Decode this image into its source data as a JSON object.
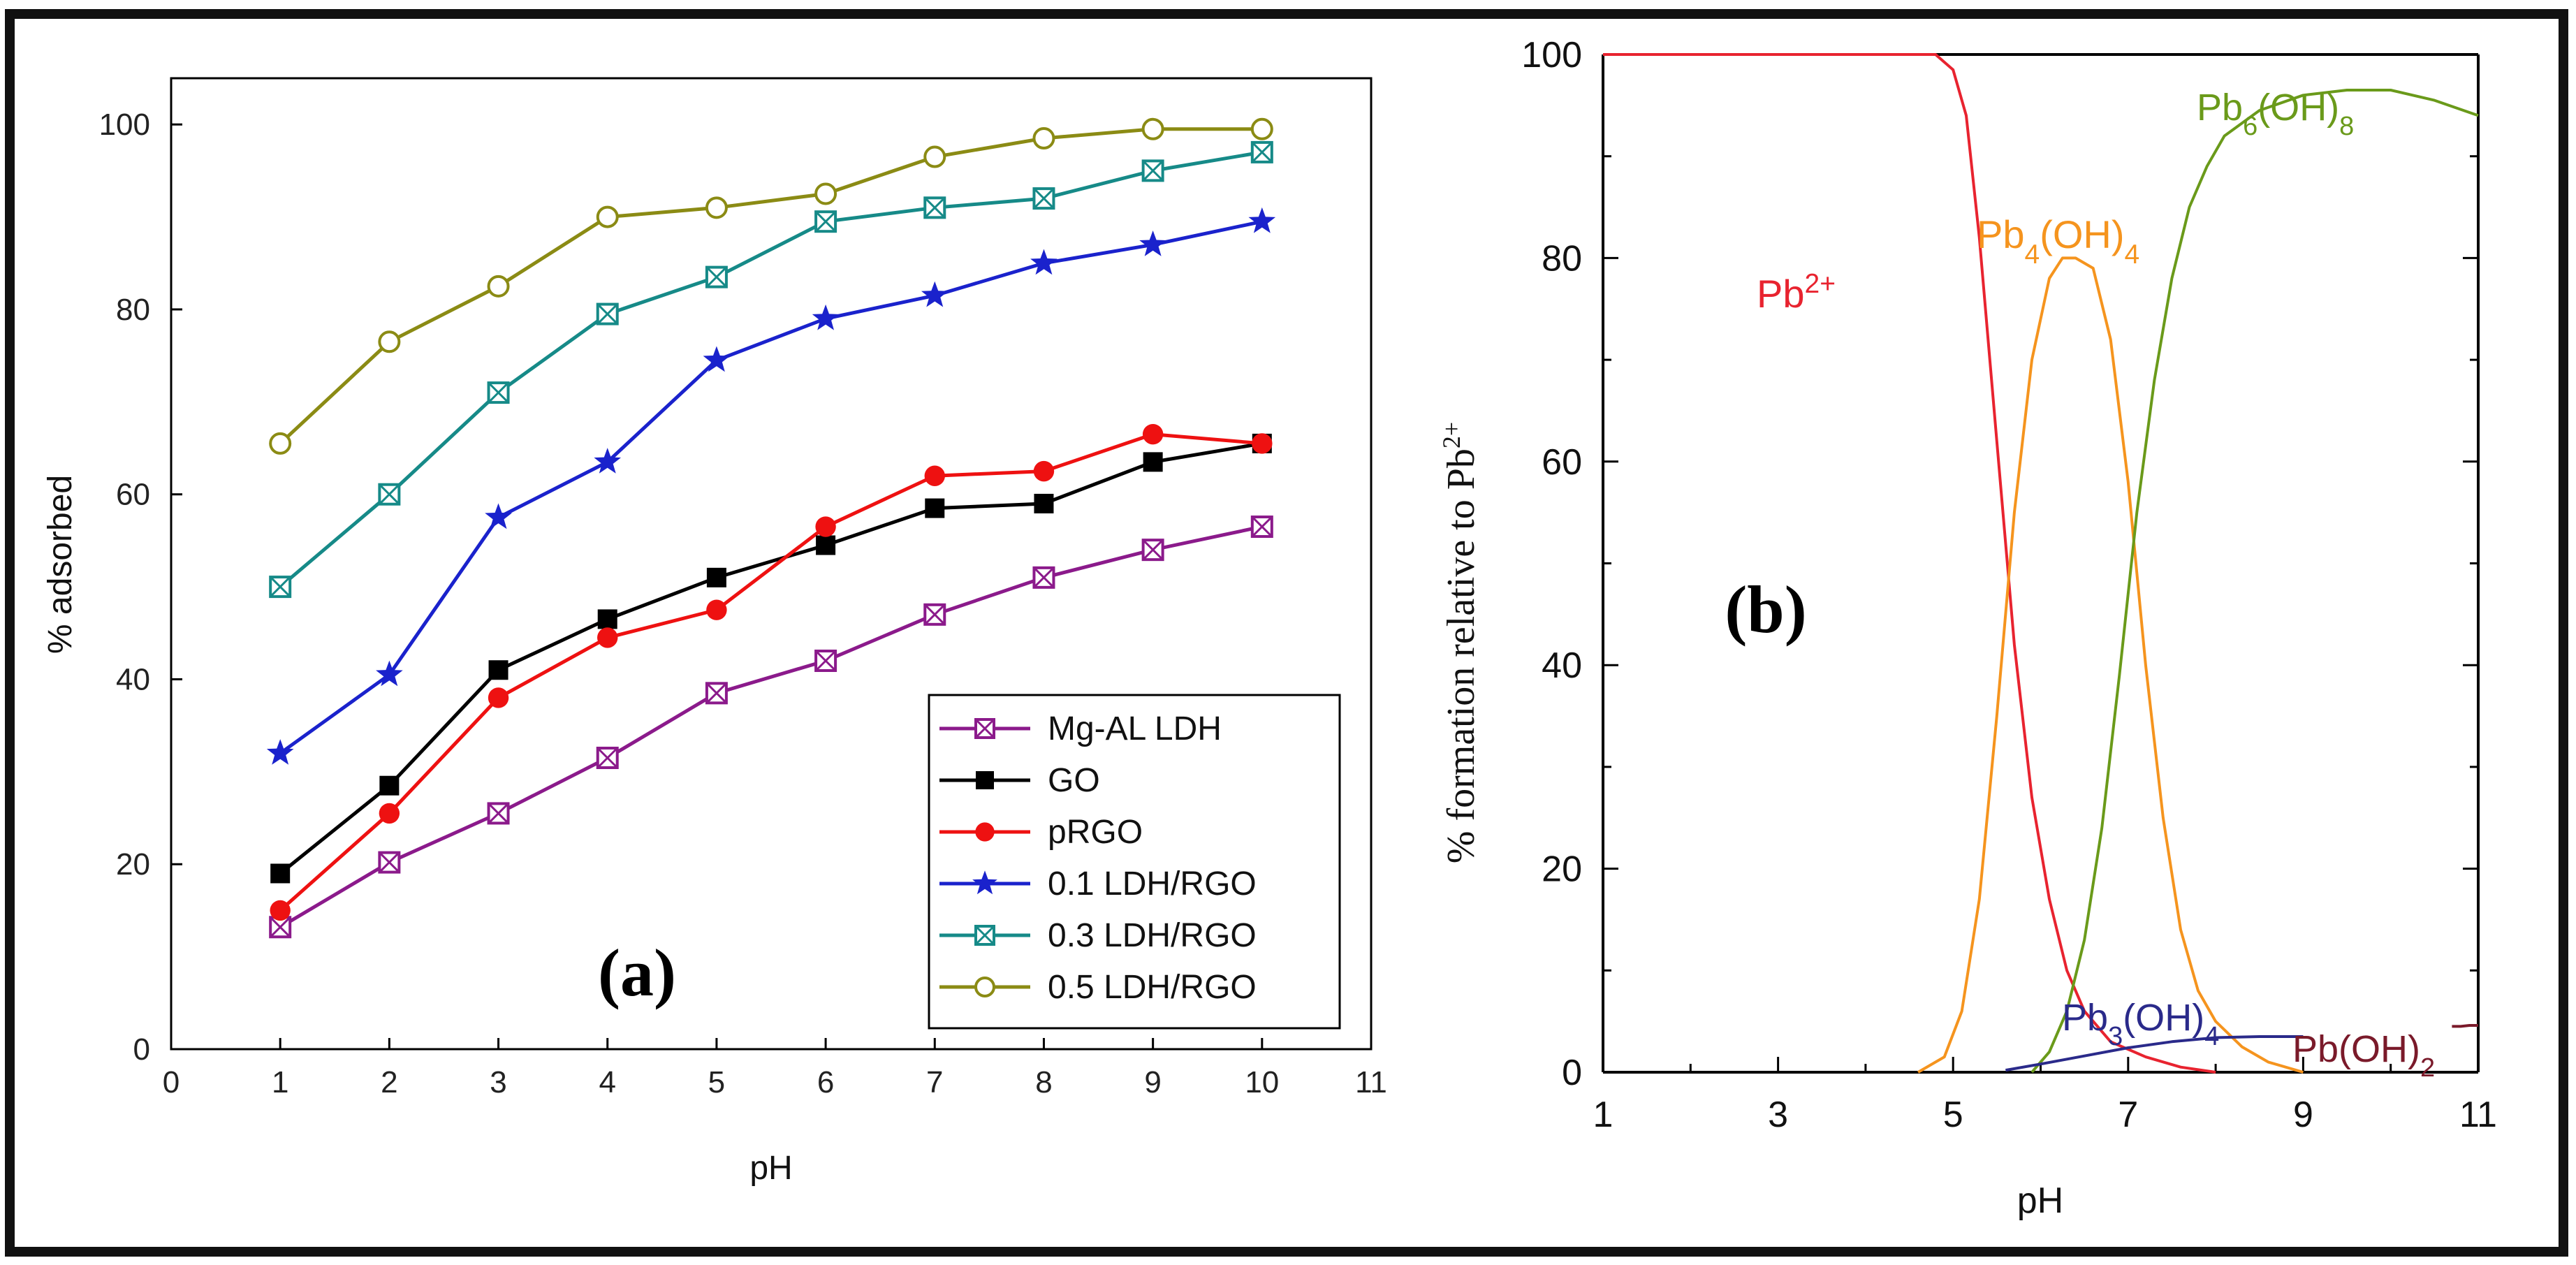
{
  "chart_data": [
    {
      "type": "line",
      "panel_label": "(a)",
      "title": "",
      "xlabel": "pH",
      "ylabel": "% adsorbed",
      "xlim": [
        0,
        11
      ],
      "ylim": [
        0,
        105
      ],
      "x_ticks": [
        "0",
        "1",
        "2",
        "3",
        "4",
        "5",
        "6",
        "7",
        "8",
        "9",
        "10",
        "11"
      ],
      "y_ticks": [
        "0",
        "20",
        "40",
        "60",
        "80",
        "100"
      ],
      "x": [
        1,
        2,
        3,
        4,
        5,
        6,
        7,
        8,
        9,
        10
      ],
      "legend_position": "bottom-right",
      "series": [
        {
          "name": "Mg-AL LDH",
          "color": "#8b1a8b",
          "marker": "box-x",
          "values": [
            13.2,
            20.2,
            25.5,
            31.5,
            38.5,
            42,
            47,
            51,
            54,
            56.5
          ]
        },
        {
          "name": "GO",
          "color": "#000000",
          "marker": "square",
          "values": [
            19,
            28.5,
            41,
            46.5,
            51,
            54.5,
            58.5,
            59,
            63.5,
            65.5
          ]
        },
        {
          "name": "pRGO",
          "color": "#ee1111",
          "marker": "circle",
          "values": [
            15,
            25.5,
            38,
            44.5,
            47.5,
            56.5,
            62,
            62.5,
            66.5,
            65.5
          ]
        },
        {
          "name": "0.1 LDH/RGO",
          "color": "#1a22cc",
          "marker": "star",
          "values": [
            32,
            40.5,
            57.5,
            63.5,
            74.5,
            79,
            81.5,
            85,
            87,
            89.5
          ]
        },
        {
          "name": "0.3 LDH/RGO",
          "color": "#168a88",
          "marker": "box-x",
          "values": [
            50,
            60,
            71,
            79.5,
            83.5,
            89.5,
            91,
            92,
            95,
            97
          ]
        },
        {
          "name": "0.5 LDH/RGO",
          "color": "#8b8b14",
          "marker": "open-circle",
          "values": [
            65.5,
            76.5,
            82.5,
            90,
            91,
            92.5,
            96.5,
            98.5,
            99.5,
            99.5
          ]
        }
      ]
    },
    {
      "type": "line",
      "panel_label": "(b)",
      "title": "",
      "xlabel": "pH",
      "ylabel": "% formation relative to Pb",
      "ylabel_sup": "2+",
      "xlim": [
        1,
        11
      ],
      "ylim": [
        0,
        100
      ],
      "x_ticks": [
        "1",
        "3",
        "5",
        "7",
        "9",
        "11"
      ],
      "y_ticks": [
        "0",
        "20",
        "40",
        "60",
        "80",
        "100"
      ],
      "series": [
        {
          "name": "Pb2+",
          "label_parts": [
            "Pb",
            "2+"
          ],
          "color": "#e8232f",
          "x": [
            1,
            4.8,
            5.0,
            5.15,
            5.3,
            5.5,
            5.7,
            5.9,
            6.1,
            6.3,
            6.5,
            6.8,
            7.2,
            7.6,
            8.0
          ],
          "y": [
            100,
            100,
            98.5,
            94,
            82,
            62,
            42,
            27,
            17,
            10,
            6,
            3,
            1.5,
            0.5,
            0
          ]
        },
        {
          "name": "Pb4(OH)4",
          "label_parts": [
            "Pb",
            "4",
            "(OH)",
            "4"
          ],
          "color": "#f5941e",
          "x": [
            4.6,
            4.9,
            5.1,
            5.3,
            5.5,
            5.7,
            5.9,
            6.1,
            6.25,
            6.4,
            6.6,
            6.8,
            7.0,
            7.2,
            7.4,
            7.6,
            7.8,
            8.0,
            8.3,
            8.6,
            9.0
          ],
          "y": [
            0,
            1.5,
            6,
            17,
            35,
            55,
            70,
            78,
            80,
            80,
            79,
            72,
            58,
            40,
            25,
            14,
            8,
            5,
            2.5,
            1,
            0
          ]
        },
        {
          "name": "Pb6(OH)8",
          "label_parts": [
            "Pb",
            "6",
            "(OH)",
            "8"
          ],
          "color": "#6a9a1a",
          "x": [
            5.9,
            6.1,
            6.3,
            6.5,
            6.7,
            6.9,
            7.1,
            7.3,
            7.5,
            7.7,
            7.9,
            8.1,
            8.5,
            9.0,
            9.5,
            10.0,
            10.5,
            11.0
          ],
          "y": [
            0,
            2,
            6,
            13,
            24,
            39,
            55,
            68,
            78,
            85,
            89,
            92,
            94.5,
            96,
            96.5,
            96.5,
            95.5,
            94
          ]
        },
        {
          "name": "Pb3(OH)4",
          "label_parts": [
            "Pb",
            "3",
            "(OH)",
            "4"
          ],
          "color": "#2a2a8a",
          "x": [
            5.6,
            6.0,
            6.5,
            7.0,
            7.5,
            8.0,
            8.5,
            9.0
          ],
          "y": [
            0.2,
            0.8,
            1.6,
            2.4,
            3.0,
            3.4,
            3.5,
            3.5
          ]
        },
        {
          "name": "Pb(OH)2",
          "label_parts": [
            "Pb(OH)",
            "2"
          ],
          "color": "#7a1a2a",
          "x": [
            10.7,
            10.8,
            10.9,
            11.0
          ],
          "y": [
            4.5,
            4.5,
            4.6,
            4.6
          ]
        }
      ]
    }
  ]
}
